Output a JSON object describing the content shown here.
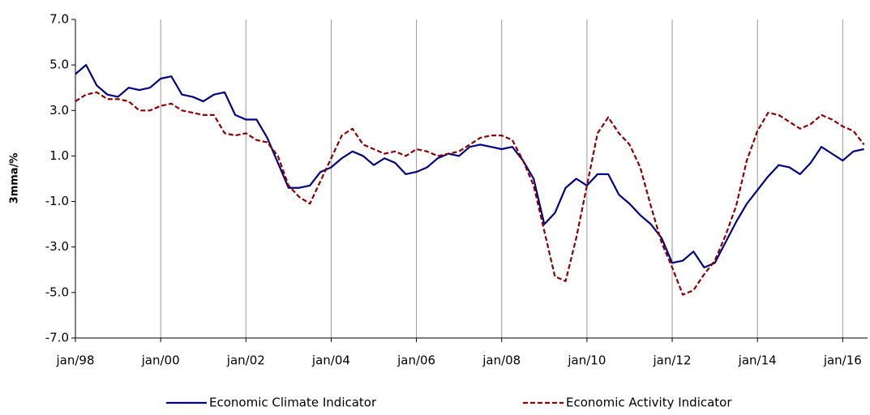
{
  "chart_data": {
    "type": "line",
    "ylabel": "3mma/%",
    "x": [
      "1998-01",
      "1998-04",
      "1998-07",
      "1998-10",
      "1999-01",
      "1999-04",
      "1999-07",
      "1999-10",
      "2000-01",
      "2000-04",
      "2000-07",
      "2000-10",
      "2001-01",
      "2001-04",
      "2001-07",
      "2001-10",
      "2002-01",
      "2002-04",
      "2002-07",
      "2002-10",
      "2003-01",
      "2003-04",
      "2003-07",
      "2003-10",
      "2004-01",
      "2004-04",
      "2004-07",
      "2004-10",
      "2005-01",
      "2005-04",
      "2005-07",
      "2005-10",
      "2006-01",
      "2006-04",
      "2006-07",
      "2006-10",
      "2007-01",
      "2007-04",
      "2007-07",
      "2007-10",
      "2008-01",
      "2008-04",
      "2008-07",
      "2008-10",
      "2009-01",
      "2009-04",
      "2009-07",
      "2009-10",
      "2010-01",
      "2010-04",
      "2010-07",
      "2010-10",
      "2011-01",
      "2011-04",
      "2011-07",
      "2011-10",
      "2012-01",
      "2012-04",
      "2012-07",
      "2012-10",
      "2013-01",
      "2013-04",
      "2013-07",
      "2013-10",
      "2014-01",
      "2014-04",
      "2014-07",
      "2014-10",
      "2015-01",
      "2015-04",
      "2015-07",
      "2015-10",
      "2016-01",
      "2016-04",
      "2016-07"
    ],
    "series": [
      {
        "name": "Economic Climate Indicator",
        "color": "#000080",
        "dash": false,
        "values": [
          4.6,
          5.0,
          4.1,
          3.7,
          3.6,
          4.0,
          3.9,
          4.0,
          4.4,
          4.5,
          3.7,
          3.6,
          3.4,
          3.7,
          3.8,
          2.8,
          2.6,
          2.6,
          1.8,
          0.7,
          -0.4,
          -0.4,
          -0.3,
          0.3,
          0.5,
          0.9,
          1.2,
          1.0,
          0.6,
          0.9,
          0.7,
          0.2,
          0.3,
          0.5,
          0.9,
          1.1,
          1.0,
          1.4,
          1.5,
          1.4,
          1.3,
          1.4,
          0.8,
          0.0,
          -2.0,
          -1.5,
          -0.4,
          0.0,
          -0.3,
          0.2,
          0.2,
          -0.7,
          -1.1,
          -1.6,
          -2.0,
          -2.6,
          -3.7,
          -3.6,
          -3.2,
          -3.9,
          -3.7,
          -2.8,
          -1.9,
          -1.1,
          -0.5,
          0.1,
          0.6,
          0.5,
          0.2,
          0.7,
          1.4,
          1.1,
          0.8,
          1.2,
          1.3
        ]
      },
      {
        "name": "Economic Activity Indicator",
        "color": "#8b0000",
        "dash": true,
        "values": [
          3.4,
          3.7,
          3.8,
          3.5,
          3.5,
          3.4,
          3.0,
          3.0,
          3.2,
          3.3,
          3.0,
          2.9,
          2.8,
          2.8,
          2.0,
          1.9,
          2.0,
          1.7,
          1.6,
          1.0,
          -0.3,
          -0.8,
          -1.1,
          -0.1,
          0.9,
          1.9,
          2.2,
          1.5,
          1.3,
          1.1,
          1.2,
          1.0,
          1.3,
          1.2,
          1.0,
          1.1,
          1.2,
          1.5,
          1.8,
          1.9,
          1.9,
          1.7,
          0.8,
          -0.3,
          -2.3,
          -4.3,
          -4.5,
          -2.6,
          -0.3,
          2.0,
          2.7,
          2.0,
          1.5,
          0.5,
          -1.2,
          -2.8,
          -3.9,
          -5.1,
          -4.9,
          -4.2,
          -3.6,
          -2.5,
          -1.2,
          0.8,
          2.1,
          2.9,
          2.8,
          2.5,
          2.2,
          2.4,
          2.8,
          2.6,
          2.3,
          2.1,
          1.5
        ]
      }
    ],
    "xlim": [
      "1998-01",
      "2016-08"
    ],
    "xticks": [
      {
        "value": "1998-01",
        "label": "jan/98"
      },
      {
        "value": "2000-01",
        "label": "jan/00"
      },
      {
        "value": "2002-01",
        "label": "jan/02"
      },
      {
        "value": "2004-01",
        "label": "jan/04"
      },
      {
        "value": "2006-01",
        "label": "jan/06"
      },
      {
        "value": "2008-01",
        "label": "jan/08"
      },
      {
        "value": "2010-01",
        "label": "jan/10"
      },
      {
        "value": "2012-01",
        "label": "jan/12"
      },
      {
        "value": "2014-01",
        "label": "jan/14"
      },
      {
        "value": "2016-01",
        "label": "jan/16"
      }
    ],
    "ylim": [
      -7,
      7
    ],
    "yticks": [
      {
        "value": 7,
        "label": "7.0"
      },
      {
        "value": 5,
        "label": "5.0"
      },
      {
        "value": 3,
        "label": "3.0"
      },
      {
        "value": 1,
        "label": "1.0"
      },
      {
        "value": -1,
        "label": "-1.0"
      },
      {
        "value": -3,
        "label": "-3.0"
      },
      {
        "value": -5,
        "label": "-5.0"
      },
      {
        "value": -7,
        "label": "-7.0"
      }
    ],
    "xgrid": true,
    "legend": "bottom"
  }
}
